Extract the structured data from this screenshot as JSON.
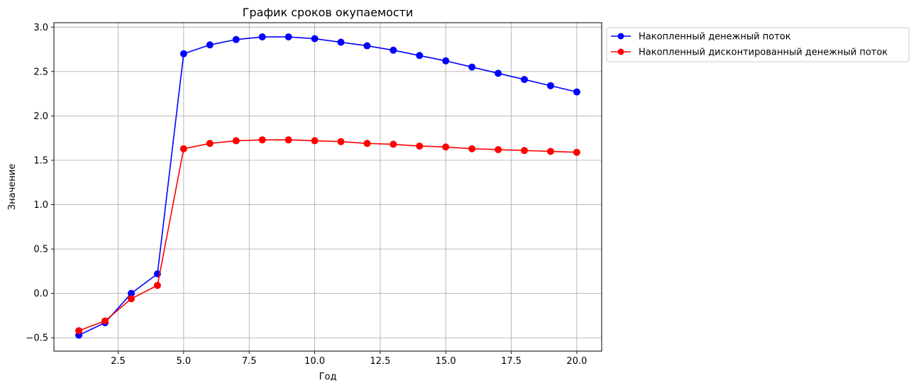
{
  "chart_data": {
    "type": "line",
    "title": "График сроков окупаемости",
    "xlabel": "Год",
    "ylabel": "Значение",
    "xlim": [
      0.05,
      20.95
    ],
    "ylim": [
      -0.65,
      3.05
    ],
    "xticks": [
      2.5,
      5.0,
      7.5,
      10.0,
      12.5,
      15.0,
      17.5,
      20.0
    ],
    "xtick_labels": [
      "2.5",
      "5.0",
      "7.5",
      "10.0",
      "12.5",
      "15.0",
      "17.5",
      "20.0"
    ],
    "yticks": [
      -0.5,
      0.0,
      0.5,
      1.0,
      1.5,
      2.0,
      2.5,
      3.0
    ],
    "ytick_labels": [
      "−0.5",
      "0.0",
      "0.5",
      "1.0",
      "1.5",
      "2.0",
      "2.5",
      "3.0"
    ],
    "grid": true,
    "legend_position": "outside-right-top",
    "x": [
      1,
      2,
      3,
      4,
      5,
      6,
      7,
      8,
      9,
      10,
      11,
      12,
      13,
      14,
      15,
      16,
      17,
      18,
      19,
      20
    ],
    "series": [
      {
        "name": "Накопленный денежный поток",
        "color": "#0000ff",
        "marker": "circle",
        "values": [
          -0.47,
          -0.33,
          0.0,
          0.22,
          2.7,
          2.8,
          2.86,
          2.89,
          2.89,
          2.87,
          2.83,
          2.79,
          2.74,
          2.68,
          2.62,
          2.55,
          2.48,
          2.41,
          2.34,
          2.27
        ]
      },
      {
        "name": "Накопленный дисконтированный денежный поток",
        "color": "#ff0000",
        "marker": "circle",
        "values": [
          -0.42,
          -0.31,
          -0.06,
          0.09,
          1.63,
          1.69,
          1.72,
          1.73,
          1.73,
          1.72,
          1.71,
          1.69,
          1.68,
          1.66,
          1.65,
          1.63,
          1.62,
          1.61,
          1.6,
          1.59
        ]
      }
    ]
  }
}
